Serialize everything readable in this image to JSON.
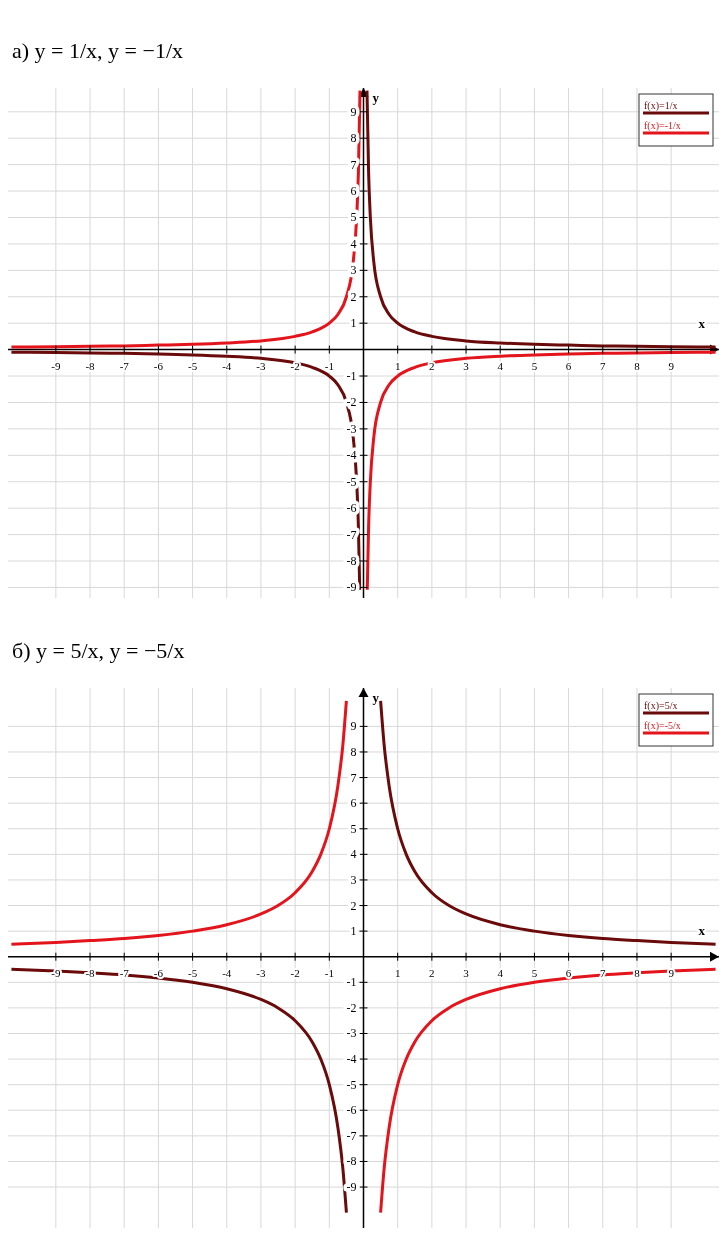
{
  "chart_data": [
    {
      "type": "line",
      "title": "а) y = 1/x,     y = −1/x",
      "xlabel": "x",
      "ylabel": "y",
      "xlim": [
        -10.4,
        10.4
      ],
      "ylim": [
        -9.4,
        9.9
      ],
      "xticks": [
        -9,
        -8,
        -7,
        -6,
        -5,
        -4,
        -3,
        -2,
        -1,
        1,
        2,
        3,
        4,
        5,
        6,
        7,
        8,
        9
      ],
      "yticks": [
        -9,
        -8,
        -7,
        -6,
        -5,
        -4,
        -3,
        -2,
        -1,
        1,
        2,
        3,
        4,
        5,
        6,
        7,
        8,
        9
      ],
      "grid": true,
      "legend": "top right",
      "marker": "none",
      "line_style": "solid",
      "series": [
        {
          "name": "f(x)=1/x",
          "color": "#6b0a0a",
          "x": [
            -10.3,
            -9,
            -8,
            -7,
            -6,
            -5,
            -4,
            -3,
            -2,
            -1.5,
            -1,
            -0.75,
            -0.5,
            -0.3,
            -0.2,
            -0.15,
            -0.11,
            0,
            0.102,
            0.15,
            0.2,
            0.3,
            0.5,
            0.75,
            1,
            1.5,
            2,
            3,
            4,
            5,
            6,
            7,
            8,
            9,
            10.3
          ],
          "values": [
            -0.1,
            -0.11,
            -0.13,
            -0.14,
            -0.17,
            -0.2,
            -0.25,
            -0.33,
            -0.5,
            -0.67,
            -1,
            -1.33,
            -2,
            -3.33,
            -5,
            -6.67,
            -9.09,
            null,
            9.8,
            6.67,
            5,
            3.33,
            2,
            1.33,
            1,
            0.67,
            0.5,
            0.33,
            0.25,
            0.2,
            0.17,
            0.14,
            0.13,
            0.11,
            0.1
          ]
        },
        {
          "name": "f(x)=-1/x",
          "color": "#e3141c",
          "x": [
            -10.3,
            -9,
            -8,
            -7,
            -6,
            -5,
            -4,
            -3,
            -2,
            -1.5,
            -1,
            -0.75,
            -0.5,
            -0.3,
            -0.2,
            -0.15,
            -0.102,
            0,
            0.11,
            0.15,
            0.2,
            0.3,
            0.5,
            0.75,
            1,
            1.5,
            2,
            3,
            4,
            5,
            6,
            7,
            8,
            9,
            10.3
          ],
          "values": [
            0.1,
            0.11,
            0.13,
            0.14,
            0.17,
            0.2,
            0.25,
            0.33,
            0.5,
            0.67,
            1,
            1.33,
            2,
            3.33,
            5,
            6.67,
            9.8,
            null,
            -9.09,
            -6.67,
            -5,
            -3.33,
            -2,
            -1.33,
            -1,
            -0.67,
            -0.5,
            -0.33,
            -0.25,
            -0.2,
            -0.17,
            -0.14,
            -0.13,
            -0.11,
            -0.1
          ]
        }
      ]
    },
    {
      "type": "line",
      "title": "б) y = 5/x,     y = −5/x",
      "xlabel": "x",
      "ylabel": "y",
      "xlim": [
        -10.4,
        10.4
      ],
      "ylim": [
        -10.6,
        10.5
      ],
      "xticks": [
        -9,
        -8,
        -7,
        -6,
        -5,
        -4,
        -3,
        -2,
        -1,
        1,
        2,
        3,
        4,
        5,
        6,
        7,
        8,
        9
      ],
      "yticks": [
        -9,
        -8,
        -7,
        -6,
        -5,
        -4,
        -3,
        -2,
        -1,
        1,
        2,
        3,
        4,
        5,
        6,
        7,
        8,
        9
      ],
      "grid": true,
      "legend": "top right",
      "marker": "none",
      "line_style": "solid",
      "series": [
        {
          "name": "f(x)=5/x",
          "color": "#6b0a0a",
          "x": [
            -10.3,
            -9,
            -8,
            -7,
            -6,
            -5,
            -4,
            -3,
            -2.5,
            -2,
            -1.5,
            -1.25,
            -1,
            -0.75,
            -0.6,
            -0.5,
            0,
            0.5,
            0.6,
            0.75,
            1,
            1.25,
            1.5,
            2,
            2.5,
            3,
            4,
            5,
            6,
            7,
            8,
            9,
            10.3
          ],
          "values": [
            -0.49,
            -0.56,
            -0.63,
            -0.71,
            -0.83,
            -1,
            -1.25,
            -1.67,
            -2,
            -2.5,
            -3.33,
            -4,
            -5,
            -6.67,
            -8.33,
            -10,
            null,
            10,
            8.33,
            6.67,
            5,
            4,
            3.33,
            2.5,
            2,
            1.67,
            1.25,
            1,
            0.83,
            0.71,
            0.63,
            0.56,
            0.49
          ]
        },
        {
          "name": "f(x)=-5/x",
          "color": "#e3141c",
          "x": [
            -10.3,
            -9,
            -8,
            -7,
            -6,
            -5,
            -4,
            -3,
            -2.5,
            -2,
            -1.5,
            -1.25,
            -1,
            -0.75,
            -0.6,
            -0.5,
            0,
            0.5,
            0.6,
            0.75,
            1,
            1.25,
            1.5,
            2,
            2.5,
            3,
            4,
            5,
            6,
            7,
            8,
            9,
            10.3
          ],
          "values": [
            0.49,
            0.56,
            0.63,
            0.71,
            0.83,
            1,
            1.25,
            1.67,
            2,
            2.5,
            3.33,
            4,
            5,
            6.67,
            8.33,
            10,
            null,
            -10,
            -8.33,
            -6.67,
            -5,
            -4,
            -3.33,
            -2.5,
            -2,
            -1.67,
            -1.25,
            -1,
            -0.83,
            -0.71,
            -0.63,
            -0.56,
            -0.49
          ]
        }
      ]
    }
  ]
}
